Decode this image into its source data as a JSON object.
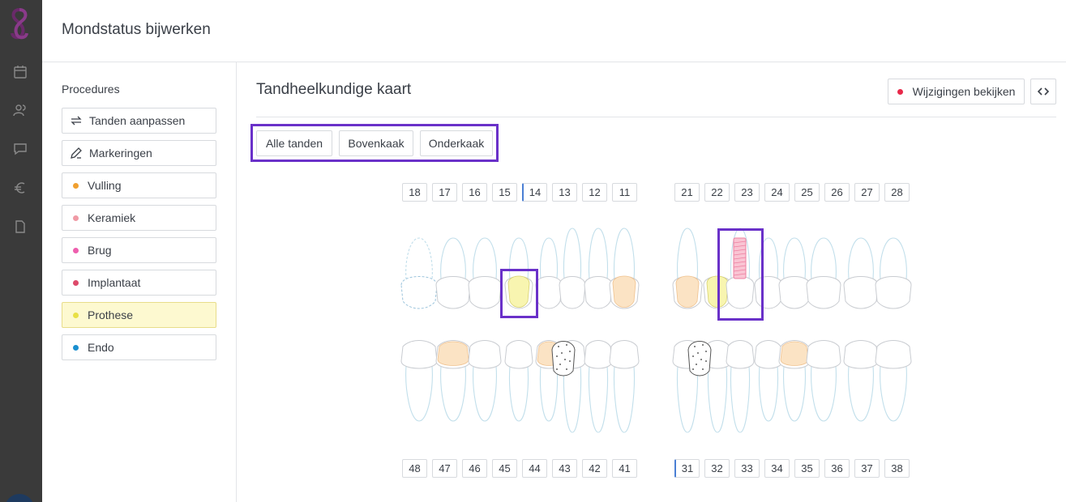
{
  "header": {
    "title": "Mondstatus bijwerken"
  },
  "rail": {
    "icons": [
      "logo-icon",
      "calendar-icon",
      "users-icon",
      "chat-icon",
      "euro-icon",
      "document-icon"
    ]
  },
  "procedures": {
    "heading": "Procedures",
    "items": [
      {
        "label": "Tanden aanpassen",
        "icon": "swap-icon"
      },
      {
        "label": "Markeringen",
        "icon": "pencil-icon"
      },
      {
        "label": "Vulling",
        "color": "#f0a030"
      },
      {
        "label": "Keramiek",
        "color": "#f09aa5"
      },
      {
        "label": "Brug",
        "color": "#ee5fae"
      },
      {
        "label": "Implantaat",
        "color": "#dd4a6a"
      },
      {
        "label": "Prothese",
        "color": "#e8e045",
        "active": true
      },
      {
        "label": "Endo",
        "color": "#1a8fcf"
      }
    ]
  },
  "main": {
    "title": "Tandheelkundige kaart",
    "changes_button": "Wijzigingen bekijken",
    "filters": [
      "Alle tanden",
      "Bovenkaak",
      "Onderkaak"
    ]
  },
  "upper_numbers": [
    "18",
    "17",
    "16",
    "15",
    "14",
    "13",
    "12",
    "11",
    "21",
    "22",
    "23",
    "24",
    "25",
    "26",
    "27",
    "28"
  ],
  "lower_numbers": [
    "48",
    "47",
    "46",
    "45",
    "44",
    "43",
    "42",
    "41",
    "31",
    "32",
    "33",
    "34",
    "35",
    "36",
    "37",
    "38"
  ],
  "colors": {
    "accent": "#6a31c9",
    "fill": "#fbe3c4",
    "prothese": "#f8f5b0",
    "implant": "#f7b8c8",
    "outline": "#c7e3ee"
  }
}
